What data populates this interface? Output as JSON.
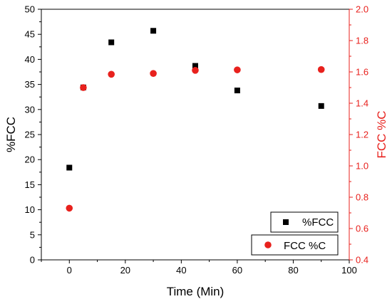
{
  "chart_data": {
    "type": "scatter",
    "xlabel": "Time (Min)",
    "xlim": [
      -10,
      100
    ],
    "xticks": [
      0,
      20,
      40,
      60,
      80,
      100
    ],
    "ylabel_left": "%FCC",
    "ylim_left": [
      0,
      50
    ],
    "yticks_left": [
      0,
      5,
      10,
      15,
      20,
      25,
      30,
      35,
      40,
      45,
      50
    ],
    "ylabel_right": "FCC %C",
    "ylim_right": [
      0.4,
      2.0
    ],
    "yticks_right": [
      "0.4",
      "0.6",
      "0.8",
      "1.0",
      "1.2",
      "1.4",
      "1.6",
      "1.8",
      "2.0"
    ],
    "right_axis_color": "#e8211d",
    "grid": false,
    "legend_position": "bottom-right",
    "series": [
      {
        "name": "%FCC",
        "axis": "left",
        "marker": "square",
        "color": "#000000",
        "x": [
          0,
          5,
          15,
          30,
          45,
          60,
          90
        ],
        "y": [
          18.4,
          34.4,
          43.4,
          45.7,
          38.7,
          33.8,
          30.7
        ]
      },
      {
        "name": "FCC %C",
        "axis": "right",
        "marker": "circle",
        "color": "#e8211d",
        "x": [
          0,
          5,
          15,
          30,
          45,
          60,
          90
        ],
        "y": [
          0.73,
          1.5,
          1.585,
          1.59,
          1.61,
          1.613,
          1.615
        ]
      }
    ]
  }
}
